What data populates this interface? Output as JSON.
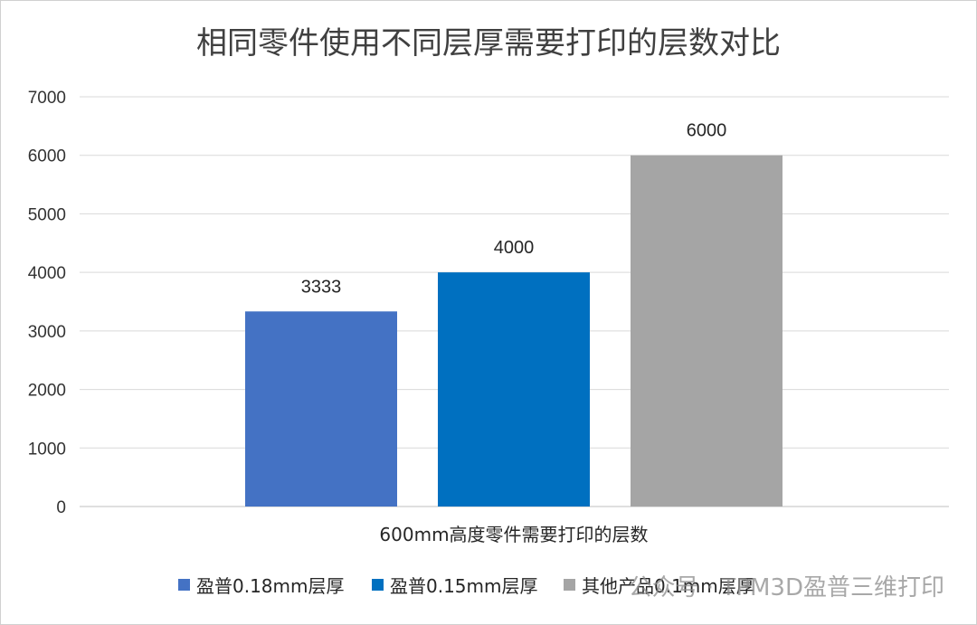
{
  "chart_data": {
    "type": "bar",
    "title": "相同零件使用不同层厚需要打印的层数对比",
    "categories": [
      "600mm高度零件需要打印的层数"
    ],
    "series": [
      {
        "name": "盈普0.18mm层厚",
        "values": [
          3333
        ],
        "color": "#4472C4"
      },
      {
        "name": "盈普0.15mm层厚",
        "values": [
          4000
        ],
        "color": "#0070C0"
      },
      {
        "name": "其他产品0.1mm层厚",
        "values": [
          6000
        ],
        "color": "#A5A5A5"
      }
    ],
    "ylim": [
      0,
      7000
    ],
    "yticks": [
      0,
      1000,
      2000,
      3000,
      4000,
      5000,
      6000,
      7000
    ],
    "data_labels": true,
    "grid": true,
    "legend": "bottom"
  },
  "watermark": {
    "text": "公众号 · TPM3D盈普三维打印"
  }
}
